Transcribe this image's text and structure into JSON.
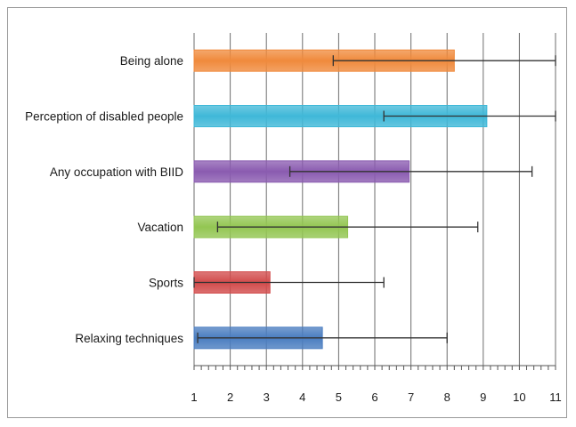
{
  "chart_data": {
    "type": "bar",
    "orientation": "horizontal",
    "categories": [
      "Being alone",
      "Perception of disabled people",
      "Any occupation with BIID",
      "Vacation",
      "Sports",
      "Relaxing techniques"
    ],
    "values": [
      8.2,
      9.1,
      6.95,
      5.25,
      3.1,
      4.55
    ],
    "error_low": [
      4.85,
      6.25,
      3.65,
      1.65,
      1.0,
      1.1
    ],
    "error_high": [
      11.0,
      11.0,
      10.35,
      8.85,
      6.25,
      8.0
    ],
    "colors": [
      "#f08a3c",
      "#3fb8d8",
      "#8a5bb0",
      "#93c652",
      "#d24b4b",
      "#4a7dc0"
    ],
    "xlim": [
      1,
      11
    ],
    "x_ticks": [
      "1",
      "2",
      "3",
      "4",
      "5",
      "6",
      "7",
      "8",
      "9",
      "10",
      "11"
    ],
    "grid": true,
    "title": "",
    "xlabel": "",
    "ylabel": ""
  }
}
